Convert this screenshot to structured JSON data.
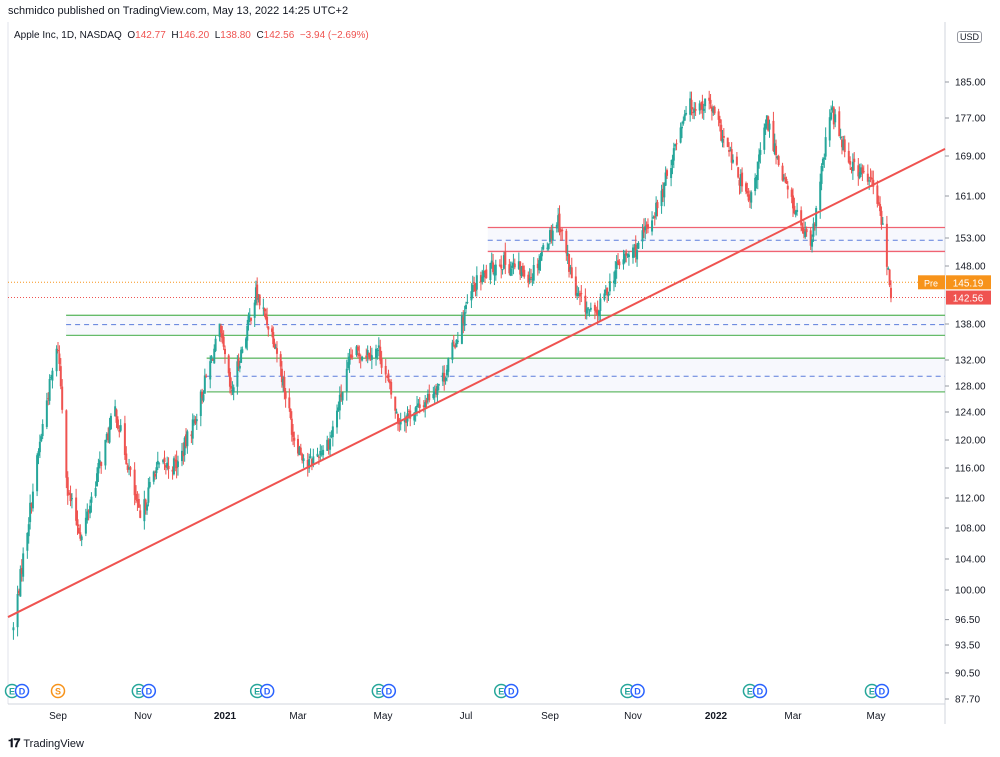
{
  "header": {
    "published": "schmidco published on TradingView.com, May 13, 2022 14:25 UTC+2"
  },
  "legend": {
    "symbol": "Apple Inc, 1D, NASDAQ",
    "o_label": "O",
    "o": "142.77",
    "h_label": "H",
    "h": "146.20",
    "l_label": "L",
    "l": "138.80",
    "c_label": "C",
    "c": "142.56",
    "change": "−3.94 (−2.69%)"
  },
  "currency": "USD",
  "footer": {
    "brand": "TradingView"
  },
  "colors": {
    "up": "#26a69a",
    "down": "#ef5350",
    "trendline": "#ef5350",
    "resistance": "#f06372",
    "support": "#66bb6a",
    "midline": "#5b7cdb",
    "pre": "#f7931a"
  },
  "chart_data": {
    "type": "candlestick",
    "symbol": "AAPL",
    "timeframe": "1D",
    "x_ticks": [
      "Sep",
      "Nov",
      "2021",
      "Mar",
      "May",
      "Jul",
      "Sep",
      "Nov",
      "2022",
      "Mar",
      "May"
    ],
    "y_ticks": [
      87.7,
      90.5,
      93.5,
      96.5,
      100.0,
      104.0,
      108.0,
      112.0,
      116.0,
      120.0,
      124.0,
      128.0,
      132.0,
      138.0,
      148.0,
      153.0,
      161.0,
      169.0,
      177.0,
      185.0
    ],
    "y_tick_labels": [
      "87.70",
      "90.50",
      "93.50",
      "96.50",
      "100.00",
      "104.00",
      "108.00",
      "112.00",
      "116.00",
      "120.00",
      "124.00",
      "128.00",
      "132.00",
      "138.00",
      "148.00",
      "153.00",
      "161.00",
      "169.00",
      "177.00",
      "185.00"
    ],
    "price_labels": [
      {
        "label": "Pre",
        "value": 145.19,
        "text": "145.19"
      },
      {
        "label": "",
        "value": 142.56,
        "text": "142.56"
      }
    ],
    "trendline": {
      "from": {
        "x": 0,
        "y": 96.8
      },
      "to": {
        "x": 1,
        "y": 170.5
      }
    },
    "levels": [
      {
        "kind": "resistance",
        "from": 0.512,
        "value": 155.0
      },
      {
        "kind": "midline",
        "from": 0.512,
        "value": 152.6
      },
      {
        "kind": "resistance",
        "from": 0.512,
        "value": 150.6
      },
      {
        "kind": "support",
        "from": 0.062,
        "value": 139.5
      },
      {
        "kind": "midline",
        "from": 0.062,
        "value": 137.9
      },
      {
        "kind": "support",
        "from": 0.062,
        "value": 136.1
      },
      {
        "kind": "support",
        "from": 0.212,
        "value": 132.3
      },
      {
        "kind": "midline",
        "from": 0.212,
        "value": 129.5
      },
      {
        "kind": "support",
        "from": 0.212,
        "value": 127.1
      }
    ],
    "pre_market": 145.19,
    "last": 142.56,
    "earnings_markers": [
      {
        "date": "2020-07-30",
        "labels": [
          "E",
          "D"
        ]
      },
      {
        "date": "2020-09-01",
        "labels": [
          "S"
        ]
      },
      {
        "date": "2020-10-29",
        "labels": [
          "E",
          "D"
        ]
      },
      {
        "date": "2021-01-27",
        "labels": [
          "E",
          "D"
        ]
      },
      {
        "date": "2021-04-28",
        "labels": [
          "E",
          "D"
        ]
      },
      {
        "date": "2021-07-27",
        "labels": [
          "E",
          "D"
        ]
      },
      {
        "date": "2021-10-28",
        "labels": [
          "E",
          "D"
        ]
      },
      {
        "date": "2022-01-27",
        "labels": [
          "E",
          "D"
        ]
      },
      {
        "date": "2022-04-28",
        "labels": [
          "E",
          "D"
        ]
      }
    ],
    "closes": [
      {
        "date": "2020-07-31",
        "close": 95.4
      },
      {
        "date": "2020-08-10",
        "close": 108.0
      },
      {
        "date": "2020-08-24",
        "close": 125.9
      },
      {
        "date": "2020-09-01",
        "close": 134.2
      },
      {
        "date": "2020-09-08",
        "close": 112.8
      },
      {
        "date": "2020-09-18",
        "close": 106.8
      },
      {
        "date": "2020-09-30",
        "close": 115.8
      },
      {
        "date": "2020-10-12",
        "close": 124.4
      },
      {
        "date": "2020-10-30",
        "close": 108.9
      },
      {
        "date": "2020-11-10",
        "close": 116.0
      },
      {
        "date": "2020-11-27",
        "close": 116.6
      },
      {
        "date": "2020-12-10",
        "close": 123.2
      },
      {
        "date": "2020-12-28",
        "close": 136.7
      },
      {
        "date": "2021-01-06",
        "close": 126.6
      },
      {
        "date": "2021-01-26",
        "close": 143.2
      },
      {
        "date": "2021-02-10",
        "close": 135.4
      },
      {
        "date": "2021-02-25",
        "close": 120.9
      },
      {
        "date": "2021-03-08",
        "close": 116.4
      },
      {
        "date": "2021-03-24",
        "close": 120.1
      },
      {
        "date": "2021-04-09",
        "close": 133.0
      },
      {
        "date": "2021-04-28",
        "close": 133.6
      },
      {
        "date": "2021-05-12",
        "close": 122.8
      },
      {
        "date": "2021-05-28",
        "close": 124.6
      },
      {
        "date": "2021-06-15",
        "close": 129.6
      },
      {
        "date": "2021-07-07",
        "close": 144.6
      },
      {
        "date": "2021-07-26",
        "close": 148.9
      },
      {
        "date": "2021-08-18",
        "close": 146.4
      },
      {
        "date": "2021-09-07",
        "close": 156.7
      },
      {
        "date": "2021-09-20",
        "close": 142.9
      },
      {
        "date": "2021-10-04",
        "close": 139.1
      },
      {
        "date": "2021-10-22",
        "close": 148.7
      },
      {
        "date": "2021-11-05",
        "close": 151.3
      },
      {
        "date": "2021-11-22",
        "close": 161.0
      },
      {
        "date": "2021-12-10",
        "close": 179.5
      },
      {
        "date": "2021-12-27",
        "close": 180.3
      },
      {
        "date": "2022-01-07",
        "close": 172.2
      },
      {
        "date": "2022-01-27",
        "close": 159.2
      },
      {
        "date": "2022-02-09",
        "close": 176.3
      },
      {
        "date": "2022-02-24",
        "close": 162.7
      },
      {
        "date": "2022-03-14",
        "close": 150.6
      },
      {
        "date": "2022-03-29",
        "close": 178.9
      },
      {
        "date": "2022-04-12",
        "close": 167.7
      },
      {
        "date": "2022-04-28",
        "close": 163.6
      },
      {
        "date": "2022-05-05",
        "close": 156.8
      },
      {
        "date": "2022-05-12",
        "close": 142.56
      }
    ]
  }
}
